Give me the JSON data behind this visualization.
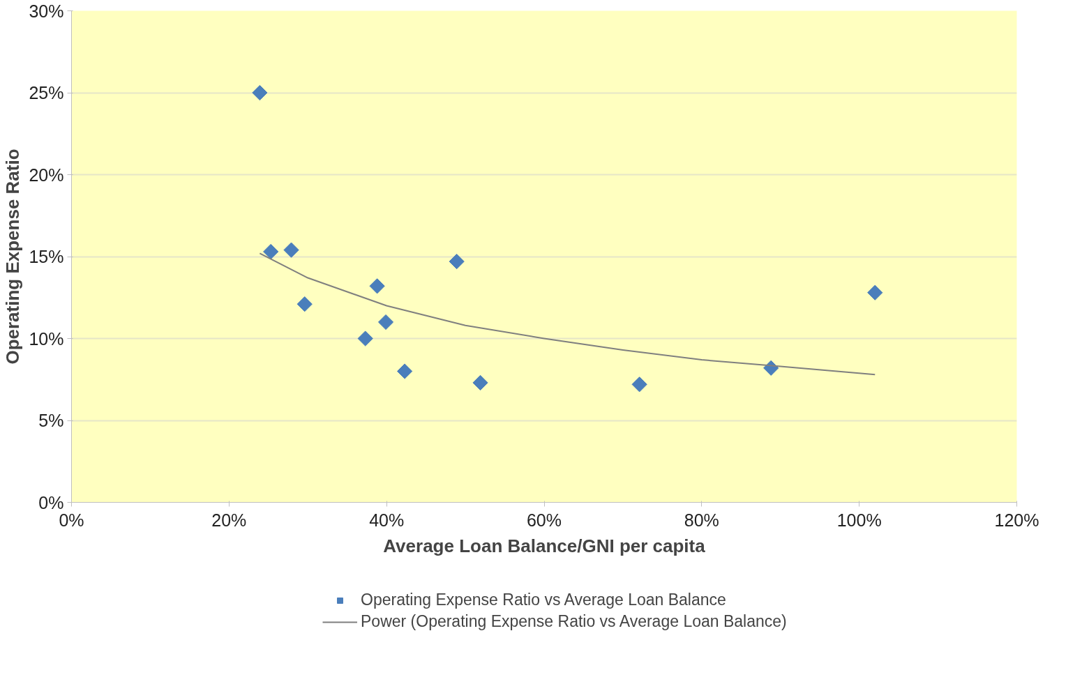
{
  "chart_data": {
    "type": "scatter",
    "xlabel": "Average Loan Balance/GNI per capita",
    "ylabel": "Operating Expense Ratio",
    "xlim": [
      0,
      120
    ],
    "ylim": [
      0,
      30
    ],
    "xticks": [
      {
        "value": 0,
        "label": "0%"
      },
      {
        "value": 20,
        "label": "20%"
      },
      {
        "value": 40,
        "label": "40%"
      },
      {
        "value": 60,
        "label": "60%"
      },
      {
        "value": 80,
        "label": "80%"
      },
      {
        "value": 100,
        "label": "100%"
      },
      {
        "value": 120,
        "label": "120%"
      }
    ],
    "yticks": [
      {
        "value": 0,
        "label": "0%"
      },
      {
        "value": 5,
        "label": "5%"
      },
      {
        "value": 10,
        "label": "10%"
      },
      {
        "value": 15,
        "label": "15%"
      },
      {
        "value": 20,
        "label": "20%"
      },
      {
        "value": 25,
        "label": "25%"
      },
      {
        "value": 30,
        "label": "30%"
      }
    ],
    "grid": "y",
    "legend": "bottom",
    "series": [
      {
        "name": "Operating Expense Ratio vs Average Loan Balance",
        "marker": "diamond",
        "color": "#4a7ebb",
        "x": [
          23.9,
          25.3,
          27.9,
          29.6,
          37.3,
          38.8,
          39.9,
          42.3,
          48.9,
          51.9,
          72.1,
          88.8,
          102.0
        ],
        "values": [
          25.0,
          15.3,
          15.4,
          12.1,
          10.0,
          13.2,
          11.0,
          8.0,
          14.7,
          7.3,
          7.2,
          8.2,
          12.8
        ]
      },
      {
        "name": "Power (Operating Expense Ratio vs Average Loan Balance)",
        "type": "line",
        "marker": "none",
        "line_style": "solid",
        "color": "#7f7f7f",
        "x": [
          23.9,
          30,
          40,
          50,
          60,
          70,
          80,
          90,
          102
        ],
        "values": [
          15.2,
          13.7,
          12.0,
          10.8,
          10.0,
          9.3,
          8.7,
          8.3,
          7.8
        ]
      }
    ]
  }
}
